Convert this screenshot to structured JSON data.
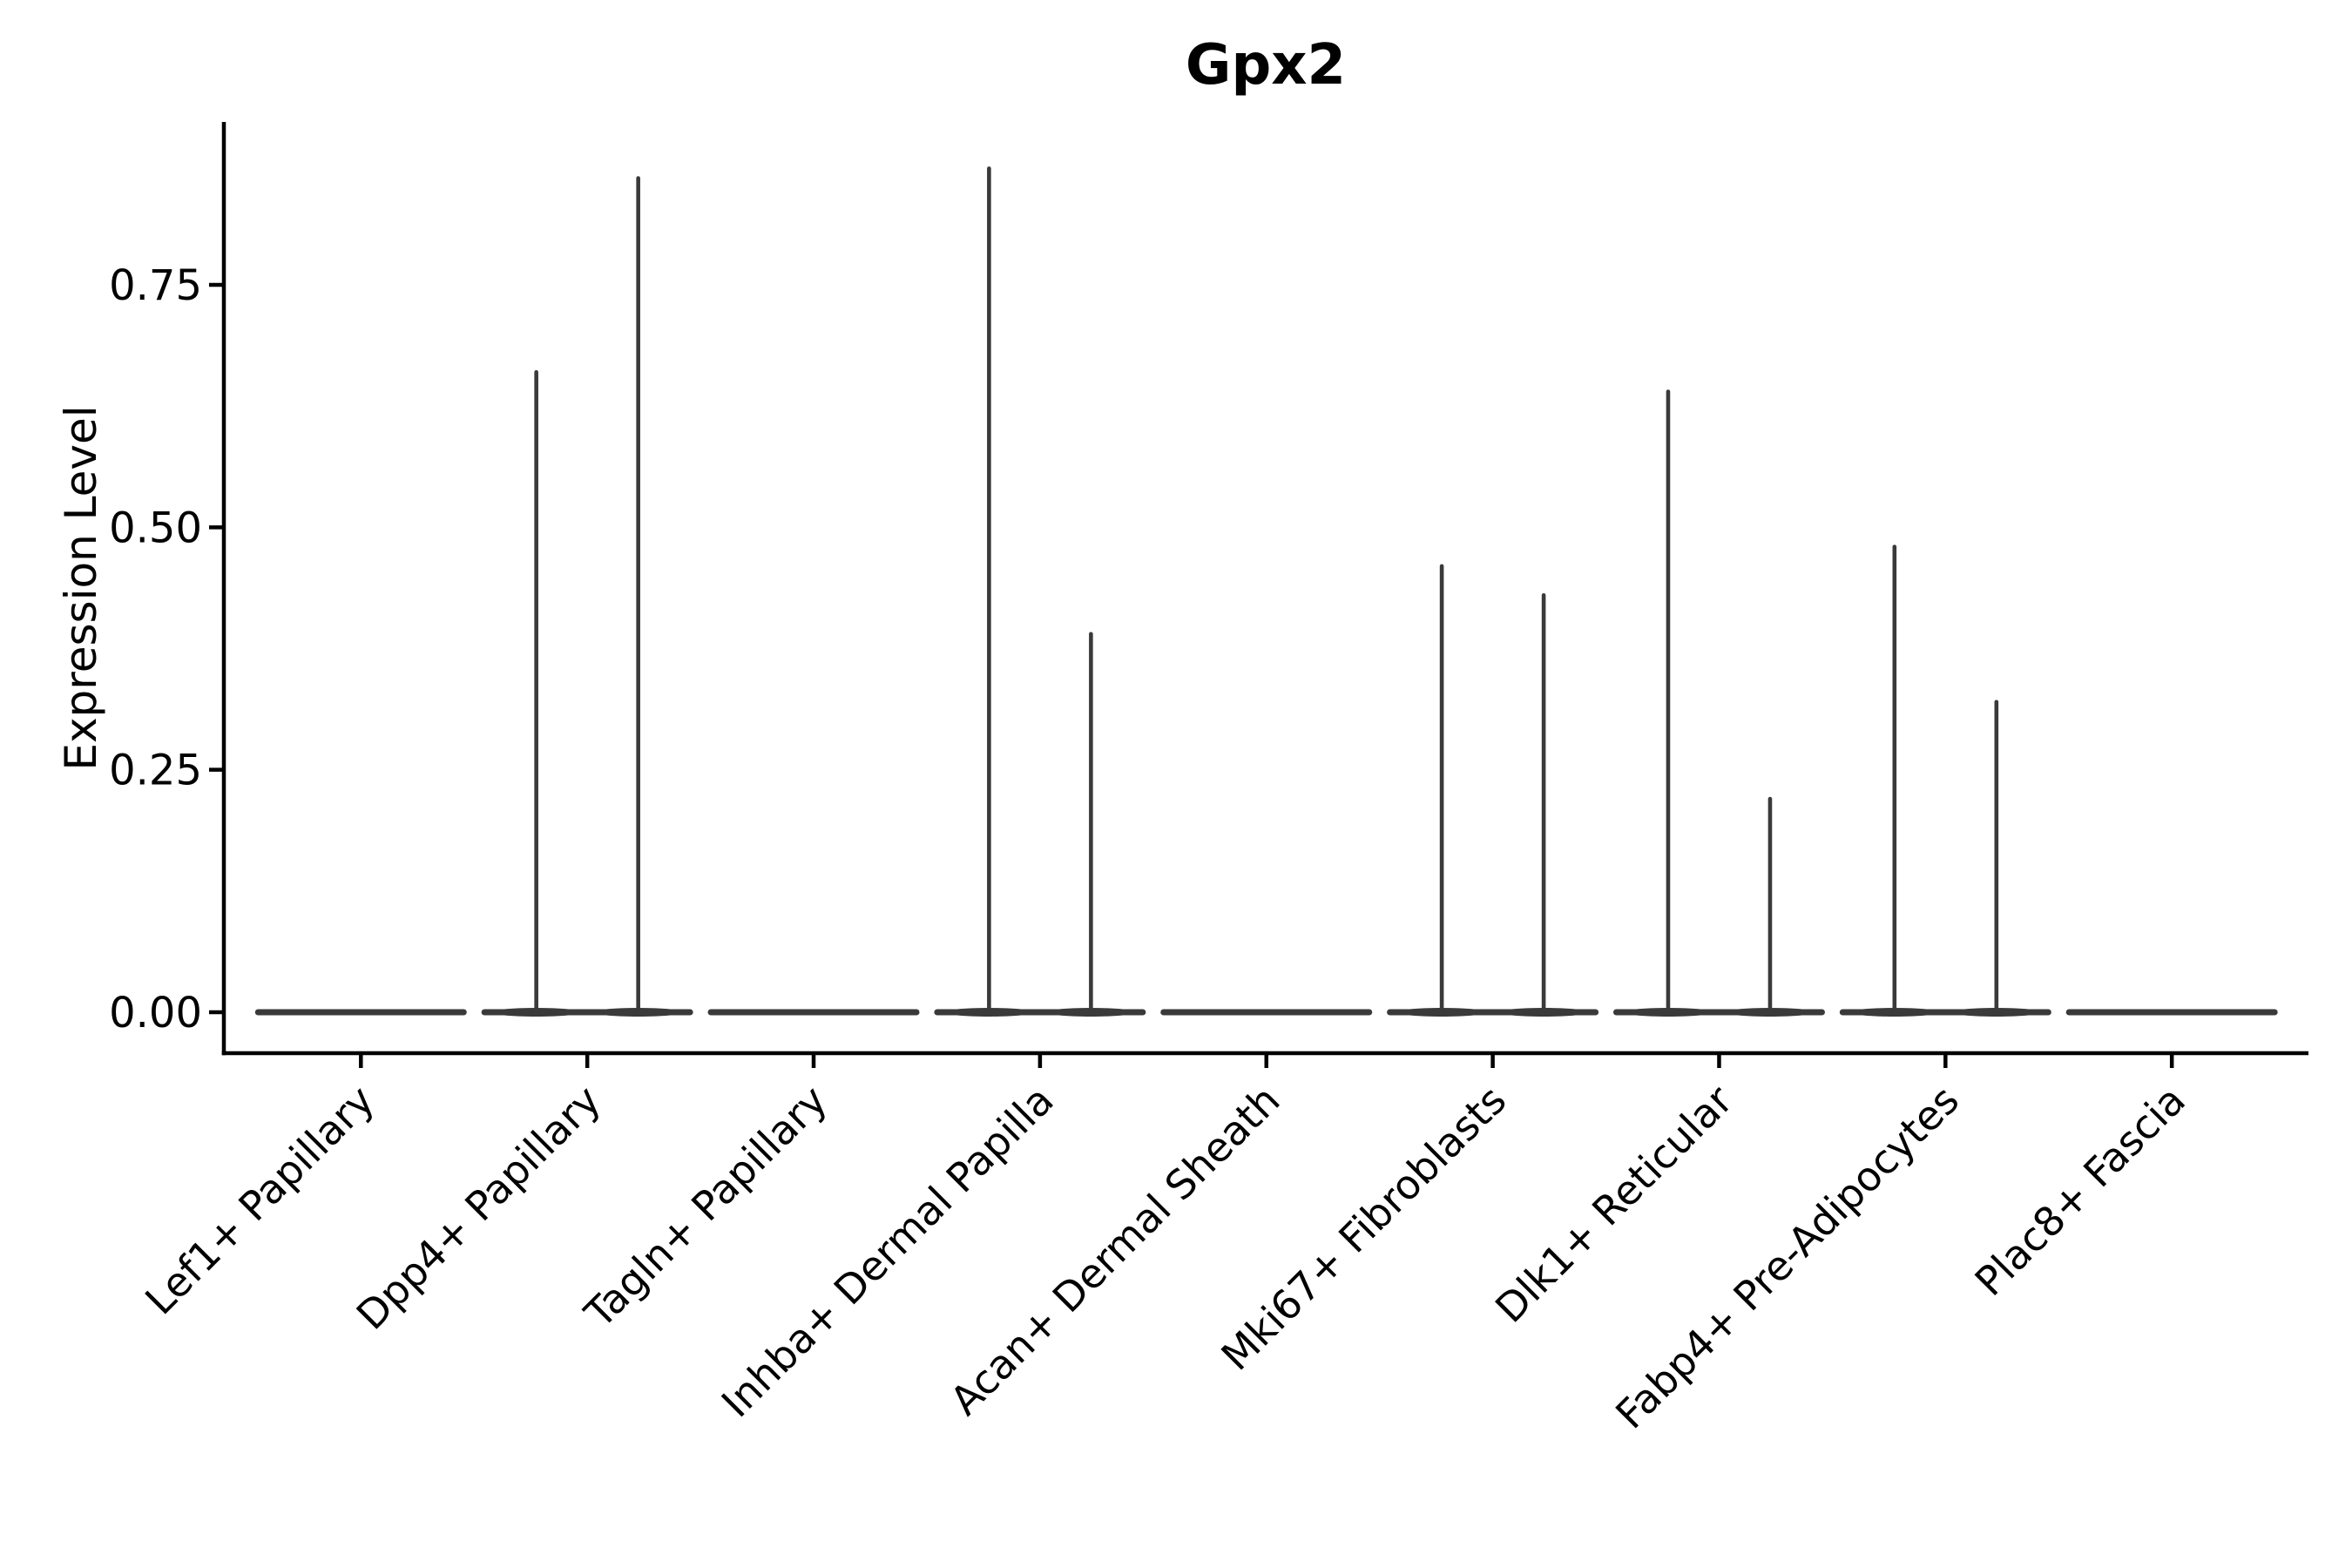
{
  "chart_data": {
    "type": "violin",
    "title": "Gpx2",
    "ylabel": "Expression Level",
    "xlabel": "",
    "grid": false,
    "legend": "none",
    "tick_label_rotation_deg": 45,
    "ylim": [
      -0.042,
      0.918
    ],
    "ytick_labels": [
      "0.00",
      "0.25",
      "0.50",
      "0.75"
    ],
    "ytick_values": [
      0.0,
      0.25,
      0.5,
      0.75
    ],
    "categories": [
      "Lef1+ Papillary",
      "Dpp4+ Papillary",
      "Tagln+ Papillary",
      "Inhba+ Dermal Papilla",
      "Acan+ Dermal Sheath",
      "Mki67+ Fibroblasts",
      "Dlk1+ Reticular",
      "Fabp4+ Pre-Adipocytes",
      "Plac8+ Fascia"
    ],
    "series": [
      {
        "name": "left-violin",
        "max_expression": [
          0,
          0.66,
          0,
          0.87,
          0,
          0.46,
          0.64,
          0.48,
          0
        ]
      },
      {
        "name": "right-violin",
        "max_expression": [
          0,
          0.86,
          0,
          0.39,
          0,
          0.43,
          0.22,
          0.32,
          0
        ]
      }
    ],
    "note": "Most cells at 0 expression: each violin renders as a flat baseline at y=0 with a thin spike to its maximum value",
    "violin_color": "#3a3a3a",
    "axis_color": "#000000",
    "text_color": "#000000",
    "background_color": "#ffffff"
  }
}
